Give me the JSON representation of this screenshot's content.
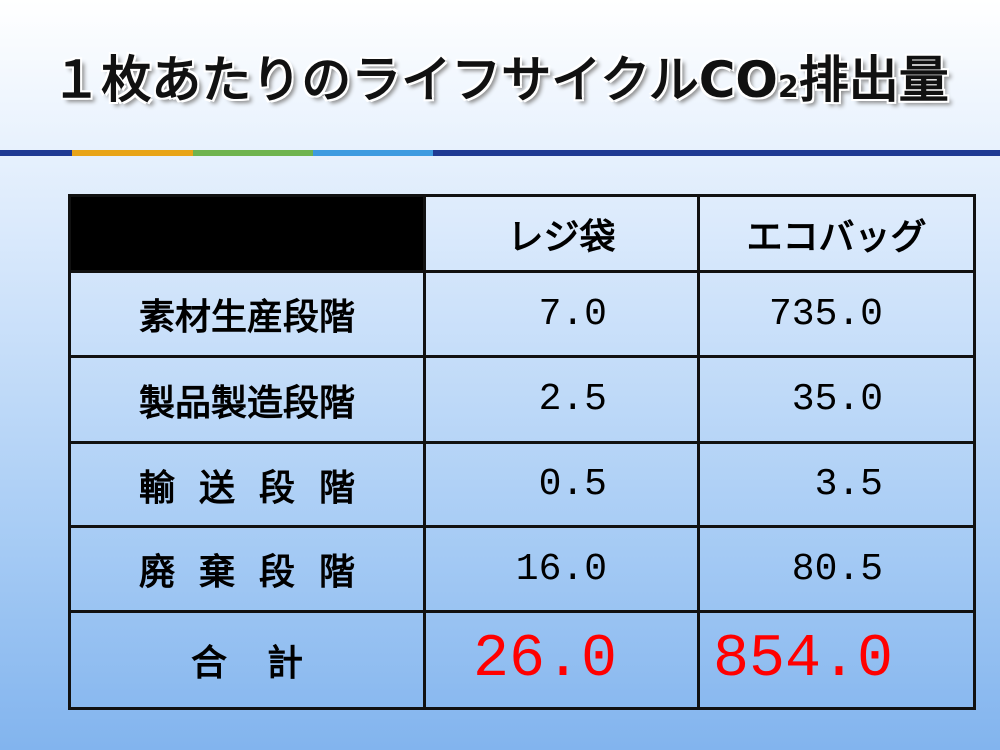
{
  "title": [
    "１枚あたりのライフサイクルCO",
    "2",
    "排出量"
  ],
  "table": {
    "header": [
      "レジ袋",
      "エコバッグ"
    ],
    "rows": [
      [
        "素材生産段階",
        "7.0",
        "735.0"
      ],
      [
        "製品製造段階",
        "2.5",
        "35.0"
      ],
      [
        "輸送段階",
        "0.5",
        "3.5"
      ],
      [
        "廃棄段階",
        "16.0",
        "80.5"
      ]
    ],
    "total": [
      "合計",
      "26.0",
      "854.0"
    ]
  }
}
